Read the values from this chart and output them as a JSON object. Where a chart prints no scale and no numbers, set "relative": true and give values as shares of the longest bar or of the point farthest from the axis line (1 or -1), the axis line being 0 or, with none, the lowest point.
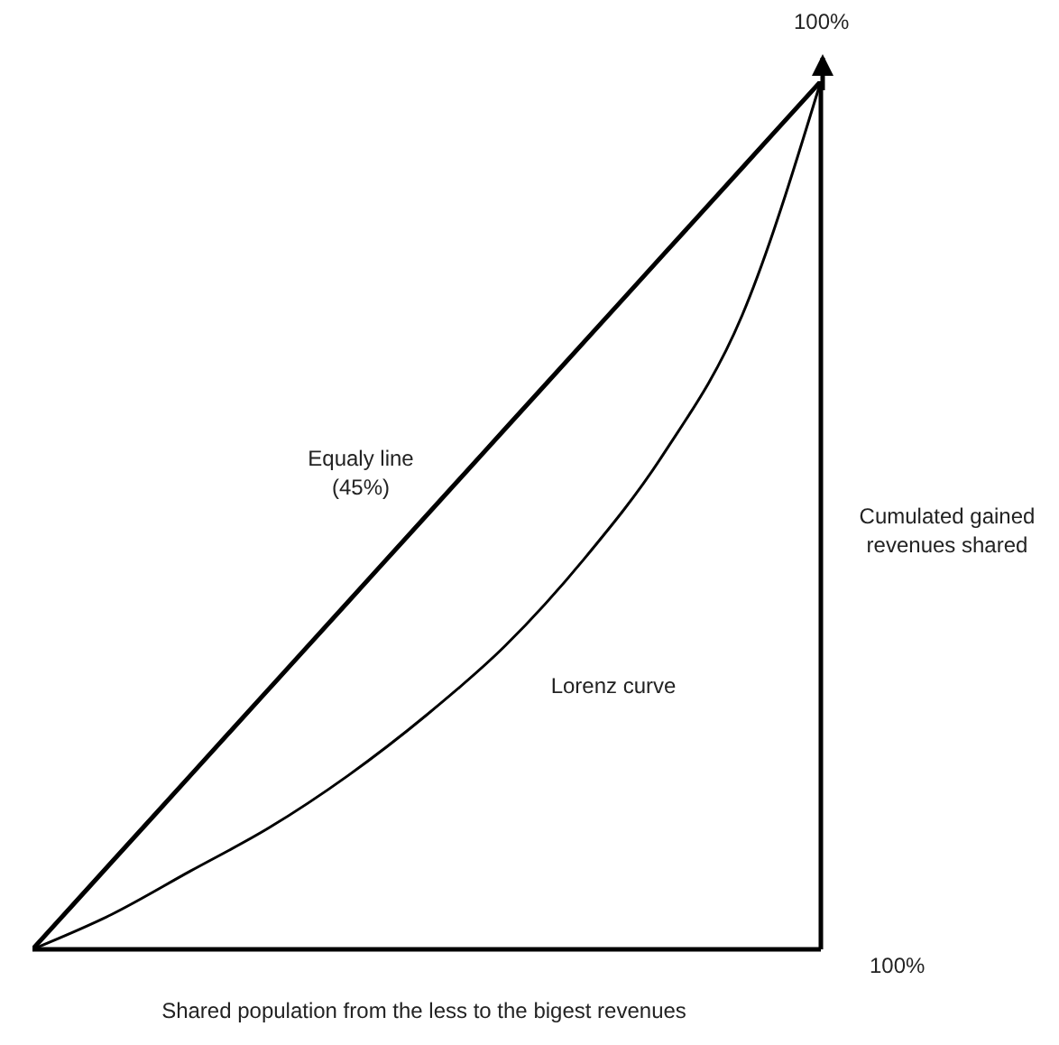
{
  "chart_data": {
    "type": "line",
    "relative": true,
    "xlabel": "Shared population from the less to the bigest revenues",
    "ylabel": "Cumulated gained revenues shared",
    "categories": [
      null,
      null,
      null,
      null,
      null,
      null,
      null,
      null,
      null,
      null,
      null
    ],
    "series": [
      {
        "name": "Equaly line (45%)",
        "color": "#000000",
        "values": [
          0,
          0.1,
          0.2,
          0.3,
          0.4,
          0.5,
          0.6,
          0.7,
          0.8,
          0.9,
          1
        ]
      },
      {
        "name": "Lorenz curve",
        "color": "#000000",
        "values": [
          0,
          0.04,
          0.09,
          0.14,
          0.2,
          0.27,
          0.35,
          0.45,
          0.57,
          0.73,
          1
        ]
      }
    ],
    "annotations": [
      "100%",
      "100%"
    ],
    "marker": "none",
    "line_style": "solid",
    "grid": false
  }
}
